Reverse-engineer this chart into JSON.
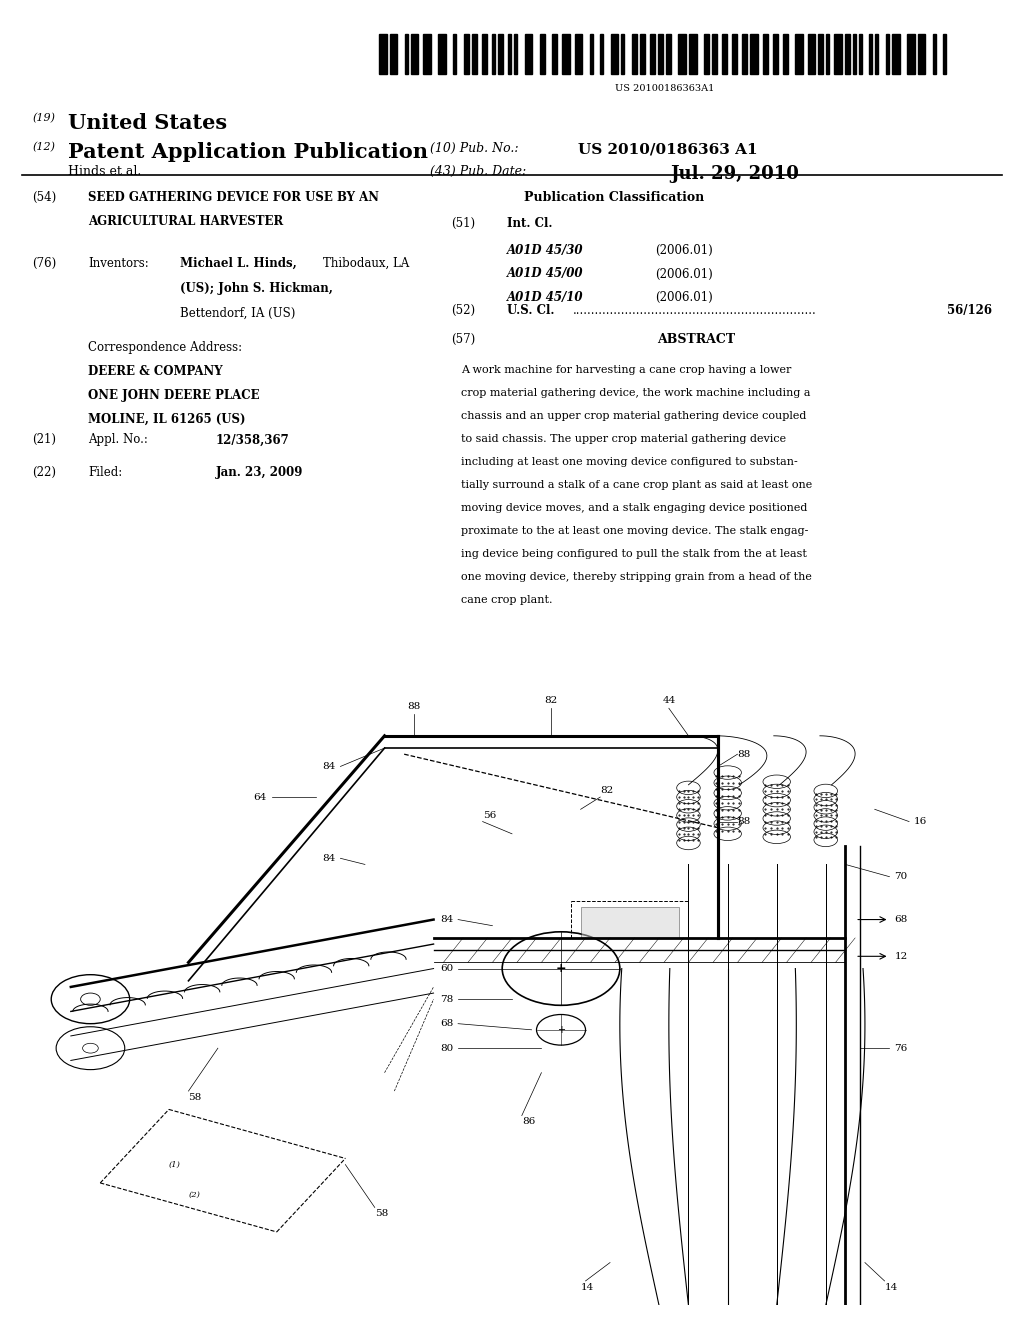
{
  "background_color": "#ffffff",
  "page_width": 10.24,
  "page_height": 13.2,
  "barcode_text": "US 20100186363A1",
  "patent_number_label": "(19)",
  "patent_title_19": "United States",
  "patent_number_label2": "(12)",
  "patent_title_12": "Patent Application Publication",
  "pub_no_label": "(10) Pub. No.:",
  "pub_no_value": "US 2010/0186363 A1",
  "inventors_label": "Hinds et al.",
  "pub_date_label": "(43) Pub. Date:",
  "pub_date_value": "Jul. 29, 2010",
  "field54_label": "(54)",
  "field54_title_line1": "SEED GATHERING DEVICE FOR USE BY AN",
  "field54_title_line2": "AGRICULTURAL HARVESTER",
  "pub_class_header": "Publication Classification",
  "field51_label": "(51)",
  "int_cl_label": "Int. Cl.",
  "class1_code": "A01D 45/30",
  "class1_year": "(2006.01)",
  "class2_code": "A01D 45/00",
  "class2_year": "(2006.01)",
  "class3_code": "A01D 45/10",
  "class3_year": "(2006.01)",
  "field52_label": "(52)",
  "us_cl_label": "U.S. Cl.",
  "us_cl_dots": ".................................................................",
  "us_cl_value": "56/126",
  "field57_label": "(57)",
  "abstract_header": "ABSTRACT",
  "field76_label": "(76)",
  "inventors_header": "Inventors:",
  "inventor1_name": "Michael L. Hinds,",
  "inventor1_loc": "Thibodaux, LA",
  "inventor1_loc2": "(US);",
  "inventor2_name": "John S. Hickman,",
  "inventor2_loc": "Bettendorf, IA (US)",
  "corr_address_header": "Correspondence Address:",
  "corr_company": "DEERE & COMPANY",
  "corr_address1": "ONE JOHN DEERE PLACE",
  "corr_address2": "MOLINE, IL 61265 (US)",
  "field21_label": "(21)",
  "appl_no_label": "Appl. No.:",
  "appl_no_value": "12/358,367",
  "field22_label": "(22)",
  "filed_label": "Filed:",
  "filed_value": "Jan. 23, 2009",
  "abstract_lines": [
    "A work machine for harvesting a cane crop having a lower",
    "crop material gathering device, the work machine including a",
    "chassis and an upper crop material gathering device coupled",
    "to said chassis. The upper crop material gathering device",
    "including at least one moving device configured to substan-",
    "tially surround a stalk of a cane crop plant as said at least one",
    "moving device moves, and a stalk engaging device positioned",
    "proximate to the at least one moving device. The stalk engag-",
    "ing device being configured to pull the stalk from the at least",
    "one moving device, thereby stripping grain from a head of the",
    "cane crop plant."
  ]
}
